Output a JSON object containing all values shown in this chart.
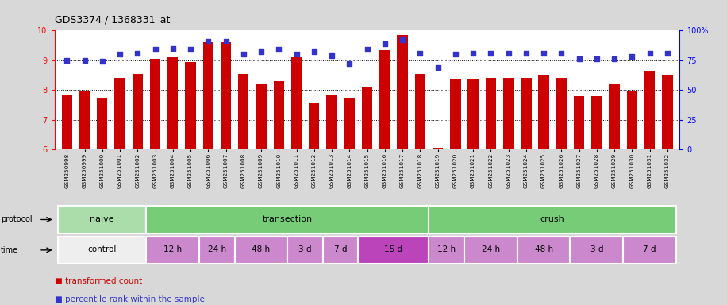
{
  "title": "GDS3374 / 1368331_at",
  "samples": [
    "GSM250998",
    "GSM250999",
    "GSM251000",
    "GSM251001",
    "GSM251002",
    "GSM251003",
    "GSM251004",
    "GSM251005",
    "GSM251006",
    "GSM251007",
    "GSM251008",
    "GSM251009",
    "GSM251010",
    "GSM251011",
    "GSM251012",
    "GSM251013",
    "GSM251014",
    "GSM251015",
    "GSM251016",
    "GSM251017",
    "GSM251018",
    "GSM251019",
    "GSM251020",
    "GSM251021",
    "GSM251022",
    "GSM251023",
    "GSM251024",
    "GSM251025",
    "GSM251026",
    "GSM251027",
    "GSM251028",
    "GSM251029",
    "GSM251030",
    "GSM251031",
    "GSM251032"
  ],
  "bar_values": [
    7.85,
    7.95,
    7.72,
    8.4,
    8.55,
    9.05,
    9.1,
    8.95,
    9.6,
    9.6,
    8.55,
    8.2,
    8.3,
    9.1,
    7.55,
    7.85,
    7.75,
    8.1,
    9.35,
    9.85,
    8.55,
    6.05,
    8.35,
    8.35,
    8.4,
    8.4,
    8.4,
    8.5,
    8.4,
    7.8,
    7.8,
    8.2,
    7.95,
    8.65,
    8.5
  ],
  "percentile_values": [
    75.0,
    75.0,
    74.0,
    80.0,
    81.0,
    84.0,
    85.0,
    84.0,
    91.0,
    91.0,
    80.0,
    82.0,
    84.0,
    80.0,
    82.0,
    79.0,
    72.0,
    84.0,
    89.0,
    92.0,
    81.0,
    69.0,
    80.0,
    81.0,
    81.0,
    81.0,
    81.0,
    81.0,
    81.0,
    76.0,
    76.0,
    76.0,
    78.0,
    81.0,
    81.0
  ],
  "bar_color": "#cc0000",
  "dot_color": "#3333cc",
  "ylim": [
    6,
    10
  ],
  "y_ticks": [
    6,
    7,
    8,
    9,
    10
  ],
  "y2_ticks": [
    0,
    25,
    50,
    75,
    100
  ],
  "background_color": "#d8d8d8",
  "plot_bg_color": "#ffffff",
  "proto_naive_color": "#aaddaa",
  "proto_green_color": "#77cc77",
  "time_control_color": "#eeeeee",
  "time_pink_color": "#cc88cc",
  "time_darkpink_color": "#bb44bb"
}
